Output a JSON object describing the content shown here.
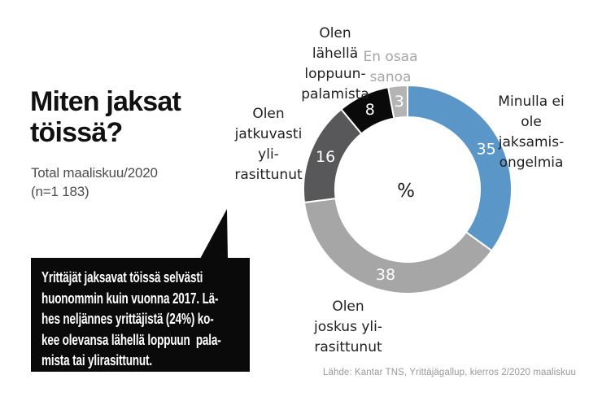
{
  "header": {
    "title": "Miten jaksat\ntöissä?",
    "subtitle": "Total maaliskuu/2020\n(n=1 183)"
  },
  "callout": {
    "text": "Yrittäjät jaksavat töissä selvästi\nhuonommin kuin vuonna 2017. Lä-\nhes neljännes yrittäjistä (24%) ko-\nkee olevansa lähellä loppuun  pala-\nmista tai ylirasittunut.",
    "bg_color": "#0a0a0a",
    "text_color": "#ffffff"
  },
  "chart_data": {
    "type": "pie",
    "variant": "donut",
    "title": "Miten jaksat töissä?",
    "subtitle": "Total maaliskuu/2020 (n=1 183)",
    "unit": "%",
    "center_label": "%",
    "total": 100,
    "start_angle_deg": 0,
    "direction": "clockwise",
    "legend_position": "around",
    "segments": [
      {
        "name": "minulla-ei-ole-jaksamisongelmia",
        "label": "Minulla ei\nole\njaksamis-\nongelmia",
        "value": 35,
        "color": "#5a96c8",
        "label_color": "#1f1f1f"
      },
      {
        "name": "olen-joskus-ylirasittunut",
        "label": "Olen\njoskus yli-\nrasittunut",
        "value": 38,
        "color": "#a6a6a6",
        "label_color": "#1f1f1f"
      },
      {
        "name": "olen-jatkuvasti-ylirasittunut",
        "label": "Olen\njatkuvasti\nyli-\nrasittunut",
        "value": 16,
        "color": "#58585a",
        "label_color": "#1f1f1f"
      },
      {
        "name": "olen-lahella-loppuunpalamista",
        "label": "Olen\nlähellä\nloppuun-\npalamista",
        "value": 8,
        "color": "#0a0a0a",
        "label_color": "#1f1f1f"
      },
      {
        "name": "en-osaa-sanoa",
        "label": "En osaa\nsanoa",
        "value": 3,
        "color": "#b4b4b4",
        "label_color": "#a6a6a6"
      }
    ]
  },
  "source": "Lähde: Kantar TNS, Yrittäjägallup, kierros 2/2020 maaliskuu"
}
